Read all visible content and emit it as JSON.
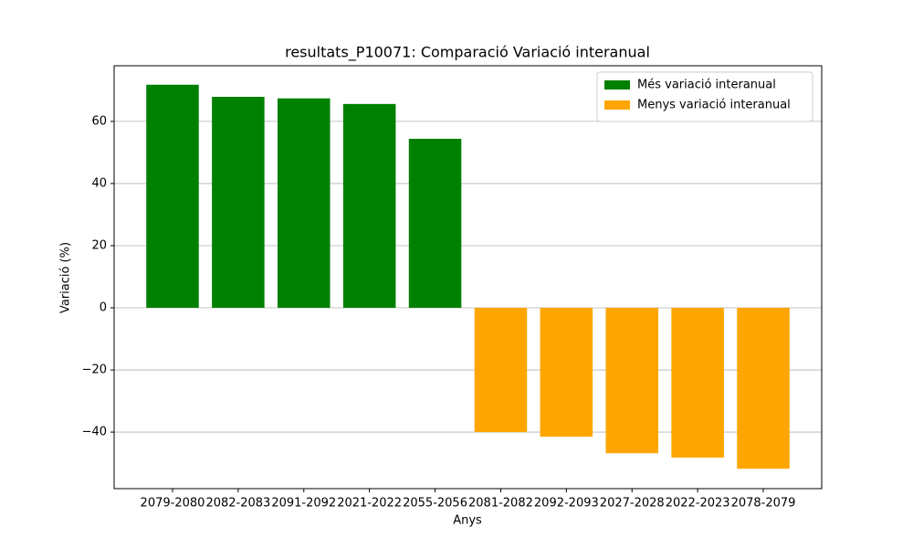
{
  "chart_data": {
    "type": "bar",
    "title": "resultats_P10071: Comparació Variació interanual",
    "x_label": "Anys",
    "y_label": "Variació (%)",
    "categories": [
      "2079-2080",
      "2082-2083",
      "2091-2092",
      "2021-2022",
      "2055-2056",
      "2081-2082",
      "2092-2093",
      "2027-2028",
      "2022-2023",
      "2078-2079"
    ],
    "series": [
      {
        "name": "Més variació interanual",
        "color": "#008000",
        "values": [
          71.8,
          67.9,
          67.4,
          65.6,
          54.4,
          null,
          null,
          null,
          null,
          null
        ]
      },
      {
        "name": "Menys variació interanual",
        "color": "#ffa500",
        "values": [
          null,
          null,
          null,
          null,
          null,
          -40.0,
          -41.5,
          -46.8,
          -48.2,
          -51.8
        ]
      }
    ],
    "ylim": [
      -58.2,
      77.9
    ],
    "yticks": [
      {
        "value": -40,
        "label": "−40"
      },
      {
        "value": -20,
        "label": "−20"
      },
      0,
      20,
      40,
      60
    ],
    "grid": true,
    "legend": "upper right"
  }
}
